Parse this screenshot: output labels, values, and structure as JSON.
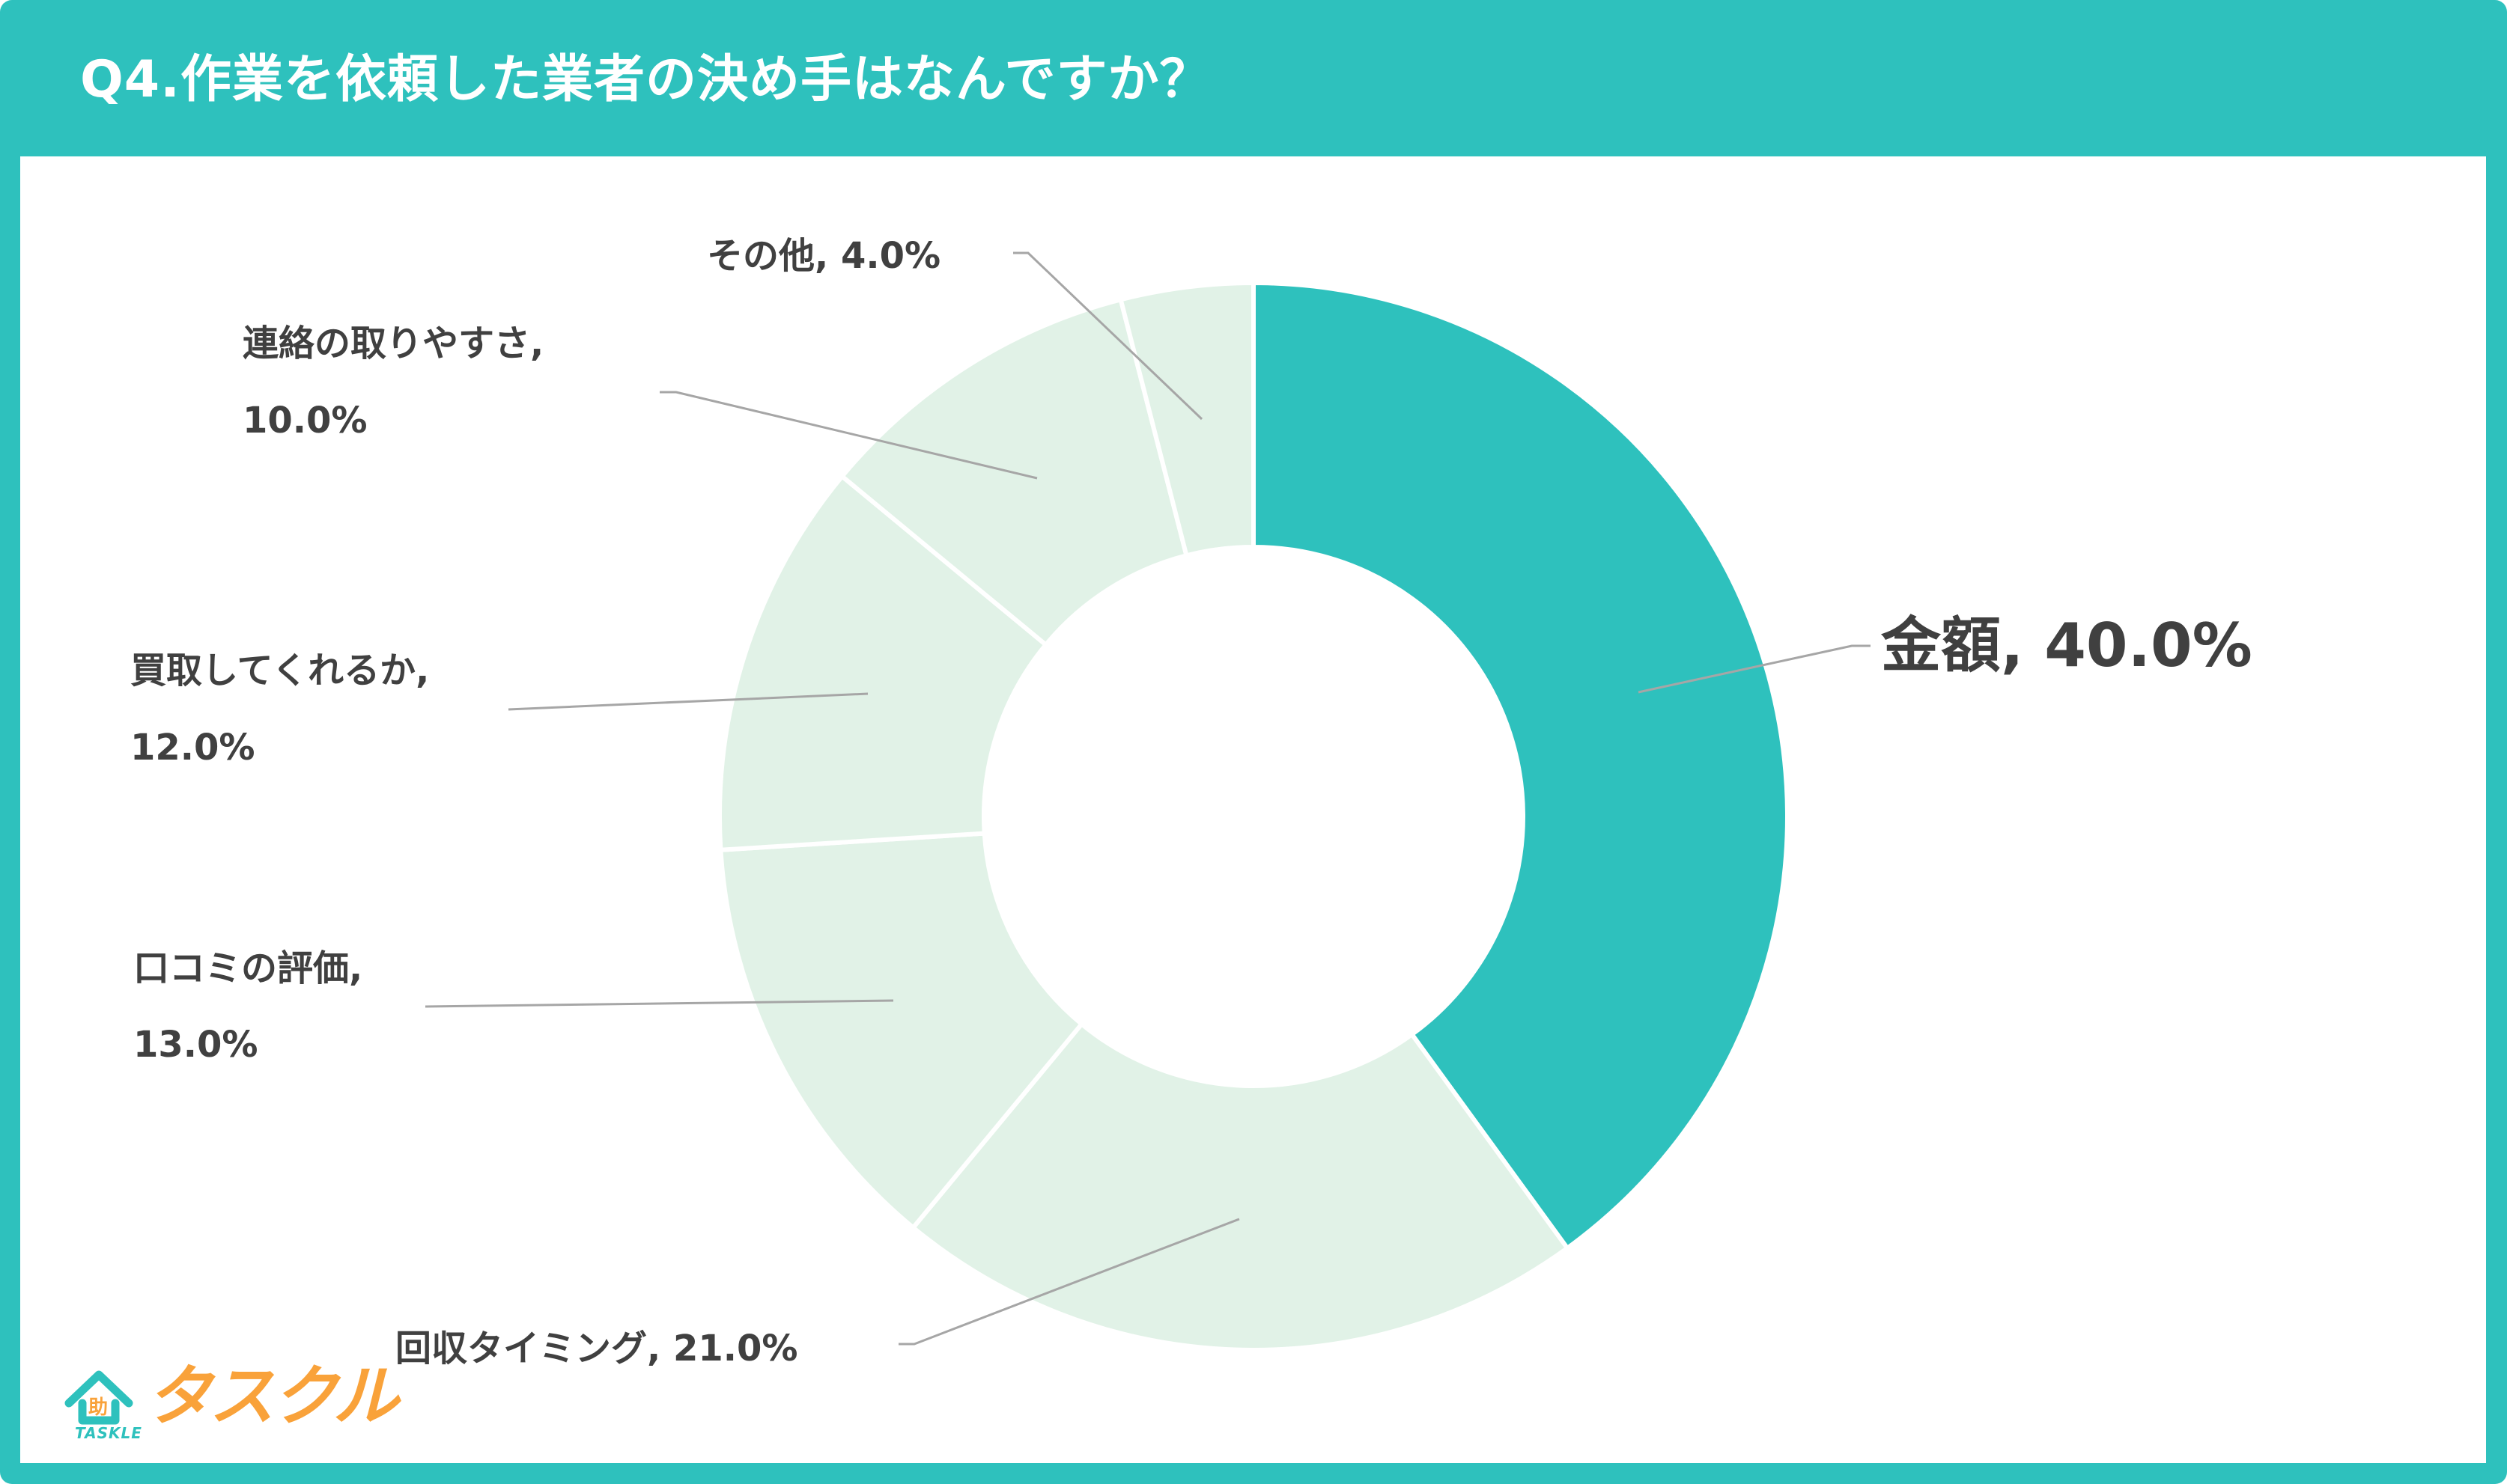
{
  "header": {
    "title": "Q4.作業を依頼した業者の決め手はなんですか？"
  },
  "colors": {
    "frame": "#2EC1BD",
    "highlight_segment": "#2EC1BD",
    "other_segment": "#E1F2E7",
    "label_text": "#404040",
    "leader_line": "#A6A6A6",
    "logo_orange": "#F9A23A"
  },
  "logo": {
    "icon": "house-icon",
    "icon_char": "助",
    "sub_text": "TASKLE",
    "wordmark": "タスクル"
  },
  "chart_data": {
    "type": "pie",
    "variant": "donut",
    "title": "Q4.作業を依頼した業者の決め手はなんですか？",
    "unit": "%",
    "start_angle_deg": 0,
    "direction": "clockwise",
    "legend": "none (data labels with leader lines)",
    "categories": [
      "金額",
      "回収タイミング",
      "口コミの評価",
      "買取してくれるか",
      "連絡の取りやすさ",
      "その他"
    ],
    "values": [
      40.0,
      21.0,
      13.0,
      12.0,
      10.0,
      4.0
    ],
    "labels": [
      {
        "line1": "金額, 40.0%",
        "line2": ""
      },
      {
        "line1": "回収タイミング, 21.0%",
        "line2": ""
      },
      {
        "line1": "口コミの評価,",
        "line2": "13.0%"
      },
      {
        "line1": "買取してくれるか,",
        "line2": "12.0%"
      },
      {
        "line1": "連絡の取りやすさ,",
        "line2": "10.0%"
      },
      {
        "line1": "その他, 4.0%",
        "line2": ""
      }
    ],
    "highlighted": "金額"
  }
}
